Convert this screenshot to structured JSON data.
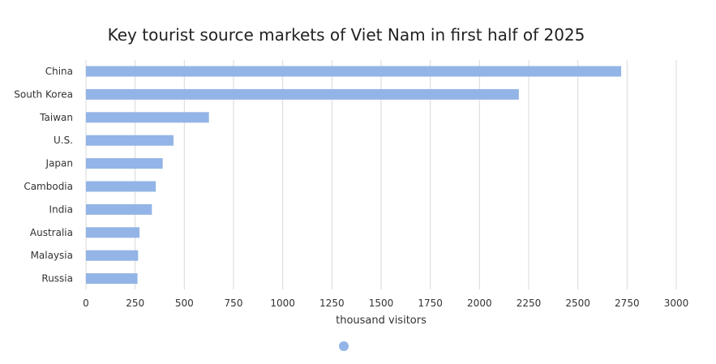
{
  "chart_data": {
    "type": "bar",
    "orientation": "horizontal",
    "title": "Key tourist source markets of Viet Nam in first half of 2025",
    "xlabel": "thousand visitors",
    "ylabel": "",
    "categories": [
      "China",
      "South Korea",
      "Taiwan",
      "U.S.",
      "Japan",
      "Cambodia",
      "India",
      "Australia",
      "Malaysia",
      "Russia"
    ],
    "series": [
      {
        "values": [
          2720,
          2200,
          625,
          445,
          390,
          355,
          335,
          272,
          265,
          262
        ]
      }
    ],
    "xlim": [
      0,
      3000
    ],
    "xticks": [
      "0",
      "250",
      "500",
      "750",
      "1000",
      "1250",
      "1500",
      "1750",
      "2000",
      "2250",
      "2500",
      "2750",
      "3000"
    ],
    "grid": true,
    "legend": "bottom-center",
    "bar_color": "#93b4e6"
  }
}
